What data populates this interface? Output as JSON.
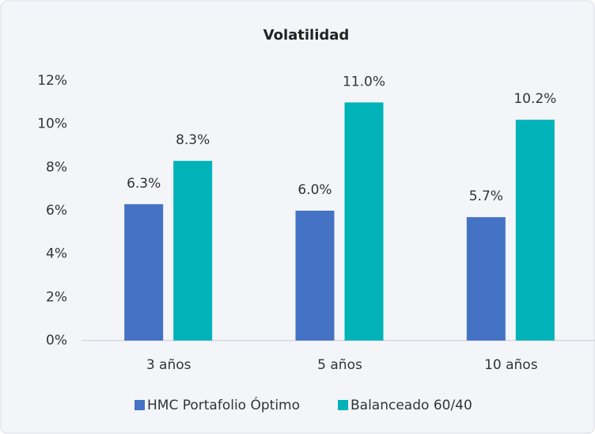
{
  "chart_data": {
    "type": "bar",
    "title": "Volatilidad",
    "categories": [
      "3 años",
      "5 años",
      "10 años"
    ],
    "series": [
      {
        "name": "HMC Portafolio Óptimo",
        "color": "#4472c4",
        "values": [
          6.3,
          6.0,
          5.7
        ],
        "value_labels": [
          "6.3%",
          "6.0%",
          "5.7%"
        ]
      },
      {
        "name": "Balanceado 60/40",
        "color": "#00b3b9",
        "values": [
          8.3,
          11.0,
          10.2
        ],
        "value_labels": [
          "8.3%",
          "11.0%",
          "10.2%"
        ]
      }
    ],
    "ylim": [
      0,
      12
    ],
    "yticks": [
      {
        "value": 0,
        "label": "0%"
      },
      {
        "value": 2,
        "label": "2%"
      },
      {
        "value": 4,
        "label": "4%"
      },
      {
        "value": 6,
        "label": "6%"
      },
      {
        "value": 8,
        "label": "8%"
      },
      {
        "value": 10,
        "label": "10%"
      },
      {
        "value": 12,
        "label": "12%"
      }
    ],
    "grid": false,
    "legend": "bottom"
  }
}
